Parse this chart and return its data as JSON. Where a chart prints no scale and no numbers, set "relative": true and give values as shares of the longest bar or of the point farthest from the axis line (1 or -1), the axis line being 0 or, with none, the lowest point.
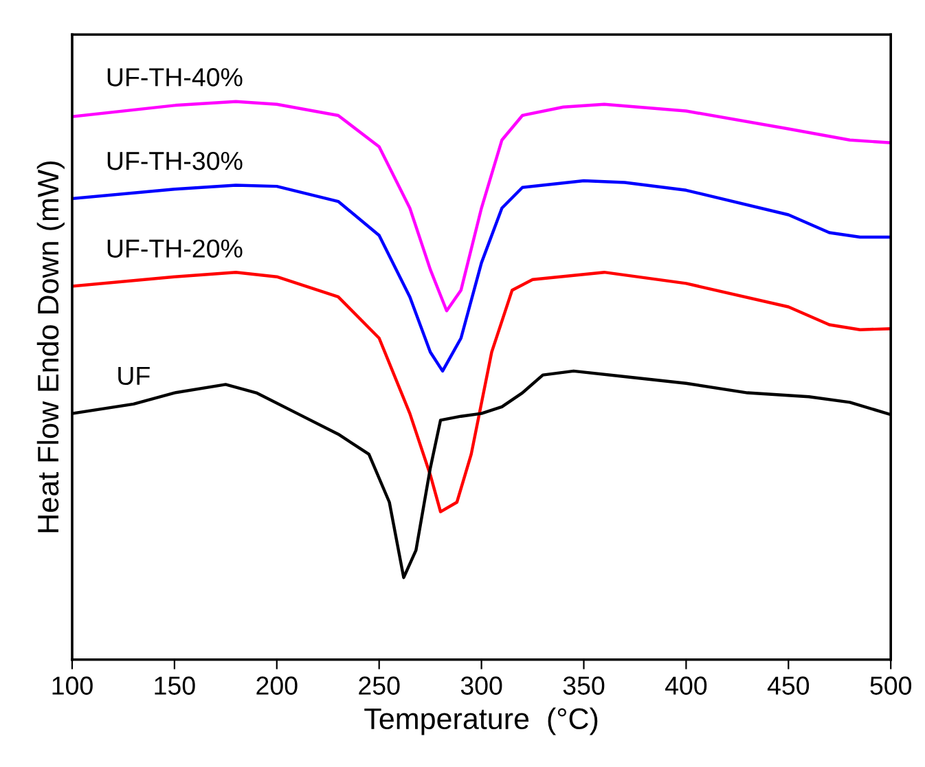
{
  "chart_data": {
    "type": "line",
    "relative": true,
    "xlabel": "Temperature  (°C)",
    "ylabel": "Heat Flow Endo Down (mW)",
    "xlim": [
      100,
      500
    ],
    "xticks": [
      100,
      150,
      200,
      250,
      300,
      350,
      400,
      450,
      500
    ],
    "grid": false,
    "legend": false,
    "line_style": "solid",
    "series": [
      {
        "name": "UF-TH-40%",
        "color": "#ff00ff",
        "x": [
          100,
          150,
          180,
          200,
          230,
          250,
          265,
          275,
          283,
          290,
          300,
          310,
          320,
          340,
          360,
          400,
          450,
          480,
          500
        ],
        "values": [
          0.973,
          0.993,
          1,
          0.995,
          0.975,
          0.919,
          0.809,
          0.699,
          0.625,
          0.662,
          0.809,
          0.931,
          0.975,
          0.99,
          0.995,
          0.983,
          0.951,
          0.931,
          0.926
        ]
      },
      {
        "name": "UF-TH-30%",
        "color": "#0000ff",
        "x": [
          100,
          150,
          180,
          200,
          230,
          250,
          265,
          275,
          281,
          290,
          300,
          310,
          320,
          350,
          370,
          400,
          450,
          470,
          485,
          500
        ],
        "values": [
          0.826,
          0.843,
          0.85,
          0.848,
          0.821,
          0.76,
          0.65,
          0.551,
          0.517,
          0.576,
          0.711,
          0.809,
          0.846,
          0.858,
          0.855,
          0.841,
          0.797,
          0.765,
          0.757,
          0.757
        ]
      },
      {
        "name": "UF-TH-20%",
        "color": "#ff0000",
        "x": [
          100,
          150,
          180,
          200,
          230,
          250,
          265,
          275,
          280,
          288,
          295,
          305,
          315,
          325,
          360,
          400,
          450,
          470,
          485,
          500
        ],
        "values": [
          0.669,
          0.686,
          0.694,
          0.686,
          0.65,
          0.576,
          0.441,
          0.331,
          0.265,
          0.282,
          0.368,
          0.551,
          0.662,
          0.681,
          0.694,
          0.674,
          0.632,
          0.6,
          0.591,
          0.593
        ]
      },
      {
        "name": "UF",
        "color": "#000000",
        "x": [
          100,
          130,
          150,
          175,
          190,
          210,
          230,
          245,
          255,
          262,
          268,
          275,
          280,
          290,
          300,
          310,
          320,
          330,
          345,
          370,
          400,
          430,
          460,
          480,
          500
        ],
        "values": [
          0.441,
          0.458,
          0.478,
          0.493,
          0.478,
          0.441,
          0.404,
          0.368,
          0.282,
          0.147,
          0.196,
          0.343,
          0.429,
          0.436,
          0.441,
          0.453,
          0.478,
          0.51,
          0.517,
          0.507,
          0.495,
          0.478,
          0.471,
          0.461,
          0.439
        ]
      }
    ]
  }
}
